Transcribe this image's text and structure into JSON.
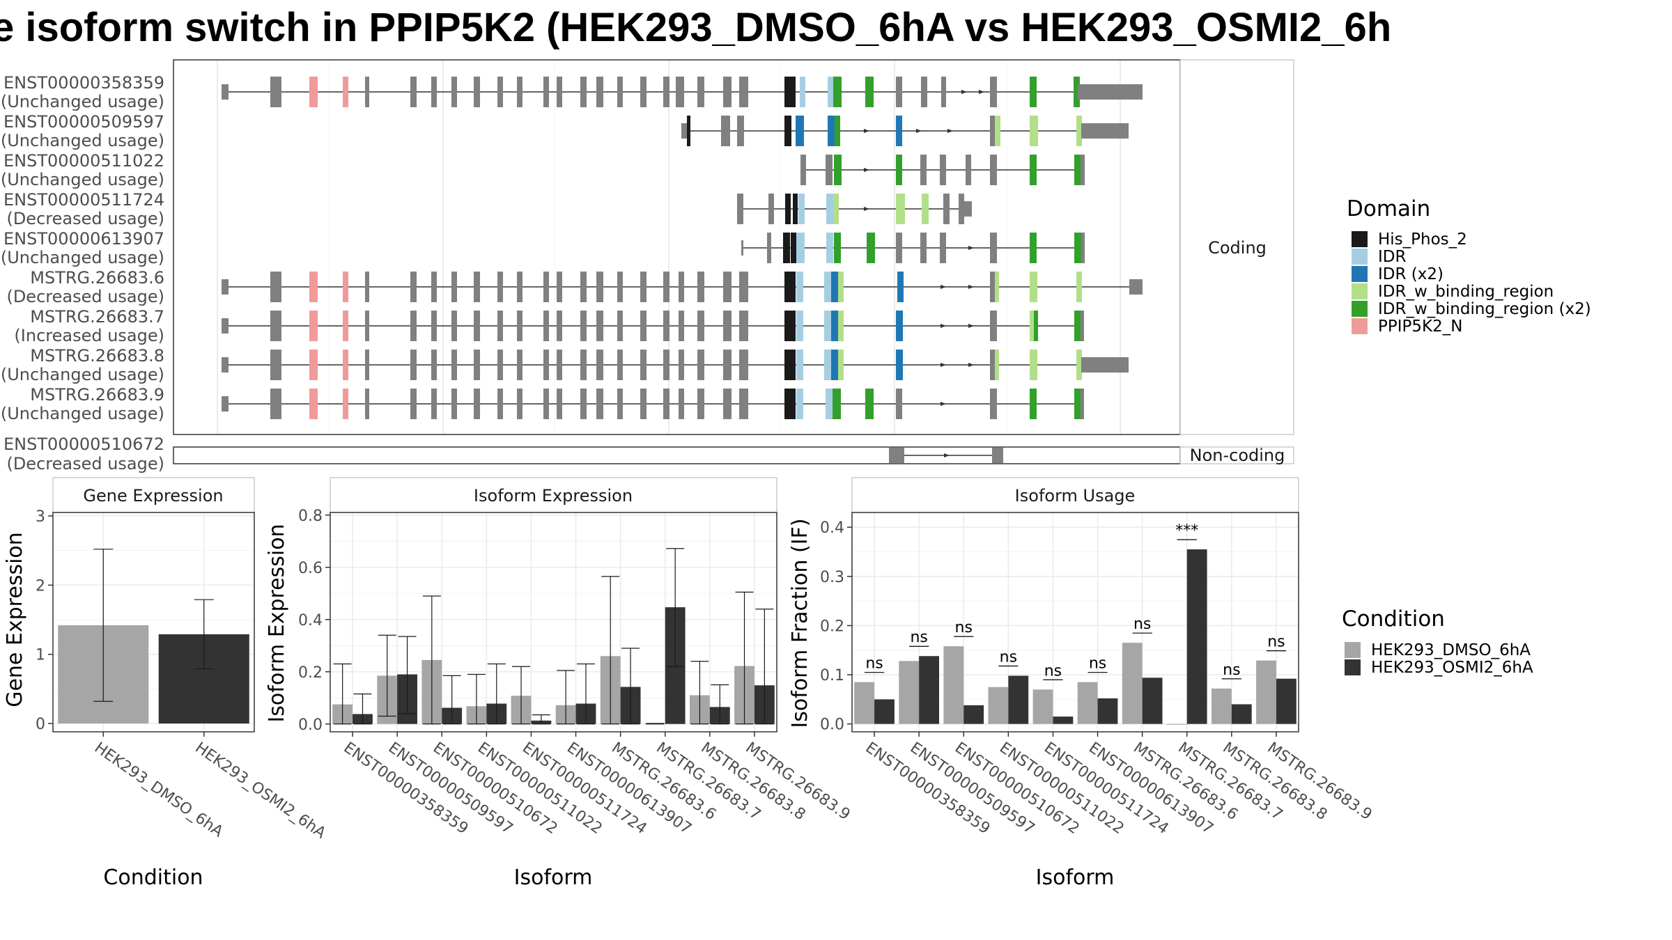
{
  "title": "e isoform switch in PPIP5K2 (HEK293_DMSO_6hA vs HEK293_OSMI2_6h",
  "colors": {
    "condition1": "#a6a6a6",
    "condition2": "#333333",
    "exon_plain": "#808080",
    "domains": {
      "His_Phos_2": "#1a1a1a",
      "IDR": "#a6cee3",
      "IDR (x2)": "#1f78b4",
      "IDR_w_binding_region": "#b2df8a",
      "IDR_w_binding_region (x2)": "#33a02c",
      "PPIP5K2_N": "#f19a9a"
    }
  },
  "panels": {
    "coding_strip": "Coding",
    "noncoding_strip": "Non-coding",
    "gene_expression": "Gene Expression",
    "isoform_expression": "Isoform Expression",
    "isoform_usage": "Isoform Usage"
  },
  "axes": {
    "gene_expression_y": "Gene Expression",
    "gene_expression_x": "Condition",
    "isoform_expression_y": "Isoform Expression",
    "isoform_expression_x": "Isoform",
    "isoform_usage_y": "Isoform Fraction (IF)",
    "isoform_usage_x": "Isoform"
  },
  "legend": {
    "domain_title": "Domain",
    "domain_items": [
      "His_Phos_2",
      "IDR",
      "IDR (x2)",
      "IDR_w_binding_region",
      "IDR_w_binding_region (x2)",
      "PPIP5K2_N"
    ],
    "condition_title": "Condition",
    "condition_items": [
      "HEK293_DMSO_6hA",
      "HEK293_OSMI2_6hA"
    ]
  },
  "transcripts": [
    {
      "id": "ENST00000358359",
      "status": "(Unchanged usage)",
      "coding": true
    },
    {
      "id": "ENST00000509597",
      "status": "(Unchanged usage)",
      "coding": true
    },
    {
      "id": "ENST00000511022",
      "status": "(Unchanged usage)",
      "coding": true
    },
    {
      "id": "ENST00000511724",
      "status": "(Decreased usage)",
      "coding": true
    },
    {
      "id": "ENST00000613907",
      "status": "(Unchanged usage)",
      "coding": true
    },
    {
      "id": "MSTRG.26683.6",
      "status": "(Decreased usage)",
      "coding": true
    },
    {
      "id": "MSTRG.26683.7",
      "status": "(Increased usage)",
      "coding": true
    },
    {
      "id": "MSTRG.26683.8",
      "status": "(Unchanged usage)",
      "coding": true
    },
    {
      "id": "MSTRG.26683.9",
      "status": "(Unchanged usage)",
      "coding": true
    },
    {
      "id": "ENST00000510672",
      "status": "(Decreased usage)",
      "coding": false
    }
  ],
  "chart_data": [
    {
      "type": "bar",
      "title": "Gene Expression",
      "xlabel": "Condition",
      "ylabel": "Gene Expression",
      "categories": [
        "HEK293_DMSO_6hA",
        "HEK293_OSMI2_6hA"
      ],
      "values": [
        1.42,
        1.29
      ],
      "error_low": [
        0.32,
        0.79
      ],
      "error_high": [
        2.52,
        1.79
      ],
      "ylim": [
        -0.12,
        3.05
      ],
      "yticks": [
        0,
        1,
        2,
        3
      ]
    },
    {
      "type": "bar",
      "title": "Isoform Expression",
      "xlabel": "Isoform",
      "ylabel": "Isoform Expression",
      "categories": [
        "ENST00000358359",
        "ENST00000509597",
        "ENST00000510672",
        "ENST00000511022",
        "ENST00000511724",
        "ENST00000613907",
        "MSTRG.26683.6",
        "MSTRG.26683.7",
        "MSTRG.26683.8",
        "MSTRG.26683.9"
      ],
      "ylim": [
        -0.03,
        0.81
      ],
      "yticks": [
        0.0,
        0.2,
        0.4,
        0.6,
        0.8
      ],
      "series": [
        {
          "name": "HEK293_DMSO_6hA",
          "values": [
            0.075,
            0.185,
            0.245,
            0.068,
            0.108,
            0.072,
            0.26,
            0.002,
            0.11,
            0.222
          ],
          "error_low": [
            0.0,
            0.03,
            0.0,
            0.0,
            0.0,
            0.0,
            0.0,
            0.0,
            0.0,
            0.0
          ],
          "error_high": [
            0.23,
            0.34,
            0.49,
            0.19,
            0.22,
            0.205,
            0.565,
            0.002,
            0.24,
            0.505
          ]
        },
        {
          "name": "HEK293_OSMI2_6hA",
          "values": [
            0.038,
            0.19,
            0.062,
            0.078,
            0.013,
            0.078,
            0.142,
            0.447,
            0.065,
            0.148
          ],
          "error_low": [
            0.0,
            0.04,
            0.0,
            0.0,
            0.0,
            0.0,
            0.0,
            0.22,
            0.0,
            0.0
          ],
          "error_high": [
            0.115,
            0.335,
            0.185,
            0.23,
            0.035,
            0.23,
            0.29,
            0.672,
            0.15,
            0.44
          ]
        }
      ]
    },
    {
      "type": "bar",
      "title": "Isoform Usage",
      "xlabel": "Isoform",
      "ylabel": "Isoform Fraction (IF)",
      "categories": [
        "ENST00000358359",
        "ENST00000509597",
        "ENST00000510672",
        "ENST00000511022",
        "ENST00000511724",
        "ENST00000613907",
        "MSTRG.26683.6",
        "MSTRG.26683.7",
        "MSTRG.26683.8",
        "MSTRG.26683.9"
      ],
      "ylim": [
        -0.016,
        0.43
      ],
      "yticks": [
        0.0,
        0.1,
        0.2,
        0.3,
        0.4
      ],
      "series": [
        {
          "name": "HEK293_DMSO_6hA",
          "values": [
            0.085,
            0.128,
            0.158,
            0.075,
            0.07,
            0.085,
            0.165,
            0.0,
            0.072,
            0.129
          ]
        },
        {
          "name": "HEK293_OSMI2_6hA",
          "values": [
            0.05,
            0.138,
            0.038,
            0.098,
            0.015,
            0.052,
            0.094,
            0.355,
            0.04,
            0.092
          ]
        }
      ],
      "significance": [
        "ns",
        "ns",
        "ns",
        "ns",
        "ns",
        "ns",
        "ns",
        "***",
        "ns",
        "ns"
      ]
    }
  ]
}
